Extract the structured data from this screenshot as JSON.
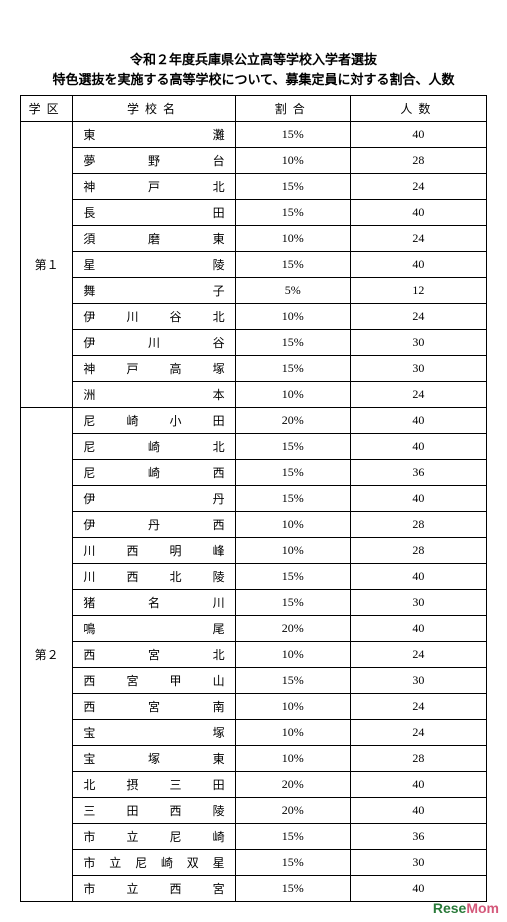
{
  "title_line1": "令和２年度兵庫県公立高等学校入学者選抜",
  "title_line2": "特色選抜を実施する高等学校について、募集定員に対する割合、人数",
  "headers": {
    "district": "学区",
    "school": "学校名",
    "ratio": "割合",
    "count": "人数"
  },
  "districts": [
    {
      "label": "第１",
      "rows": [
        {
          "school": "東灘",
          "ratio": "15%",
          "count": "40"
        },
        {
          "school": "夢野台",
          "ratio": "10%",
          "count": "28"
        },
        {
          "school": "神戸北",
          "ratio": "15%",
          "count": "24"
        },
        {
          "school": "長田",
          "ratio": "15%",
          "count": "40"
        },
        {
          "school": "須磨東",
          "ratio": "10%",
          "count": "24"
        },
        {
          "school": "星陵",
          "ratio": "15%",
          "count": "40"
        },
        {
          "school": "舞子",
          "ratio": "5%",
          "count": "12"
        },
        {
          "school": "伊川谷北",
          "ratio": "10%",
          "count": "24"
        },
        {
          "school": "伊川谷",
          "ratio": "15%",
          "count": "30"
        },
        {
          "school": "神戸高塚",
          "ratio": "15%",
          "count": "30"
        },
        {
          "school": "洲本",
          "ratio": "10%",
          "count": "24"
        }
      ]
    },
    {
      "label": "第２",
      "rows": [
        {
          "school": "尼崎小田",
          "ratio": "20%",
          "count": "40"
        },
        {
          "school": "尼崎北",
          "ratio": "15%",
          "count": "40"
        },
        {
          "school": "尼崎西",
          "ratio": "15%",
          "count": "36"
        },
        {
          "school": "伊丹",
          "ratio": "15%",
          "count": "40"
        },
        {
          "school": "伊丹西",
          "ratio": "10%",
          "count": "28"
        },
        {
          "school": "川西明峰",
          "ratio": "10%",
          "count": "28"
        },
        {
          "school": "川西北陵",
          "ratio": "15%",
          "count": "40"
        },
        {
          "school": "猪名川",
          "ratio": "15%",
          "count": "30"
        },
        {
          "school": "鳴尾",
          "ratio": "20%",
          "count": "40"
        },
        {
          "school": "西宮北",
          "ratio": "10%",
          "count": "24"
        },
        {
          "school": "西宮甲山",
          "ratio": "15%",
          "count": "30"
        },
        {
          "school": "西宮南",
          "ratio": "10%",
          "count": "24"
        },
        {
          "school": "宝塚",
          "ratio": "10%",
          "count": "24"
        },
        {
          "school": "宝塚東",
          "ratio": "10%",
          "count": "28"
        },
        {
          "school": "北摂三田",
          "ratio": "20%",
          "count": "40"
        },
        {
          "school": "三田西陵",
          "ratio": "20%",
          "count": "40"
        },
        {
          "school": "市立尼崎",
          "ratio": "15%",
          "count": "36"
        },
        {
          "school": "市立尼崎双星",
          "ratio": "15%",
          "count": "30"
        },
        {
          "school": "市立西宮",
          "ratio": "15%",
          "count": "40"
        }
      ]
    }
  ],
  "watermark": {
    "part1": "Rese",
    "part2": "Mom"
  }
}
